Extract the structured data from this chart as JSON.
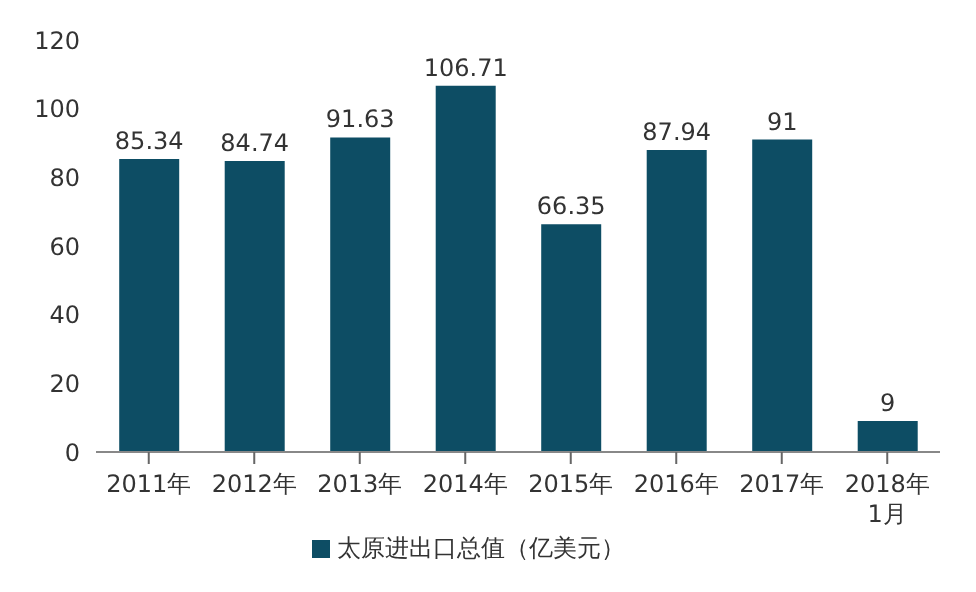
{
  "chart_data": {
    "type": "bar",
    "categories": [
      "2011年",
      "2012年",
      "2013年",
      "2014年",
      "2015年",
      "2016年",
      "2017年",
      "2018年\n1月"
    ],
    "series": [
      {
        "name": "太原进出口总值（亿美元）",
        "color": "#0d4d64",
        "values": [
          85.34,
          84.74,
          91.63,
          106.71,
          66.35,
          87.94,
          91,
          9
        ]
      }
    ],
    "ylim": [
      0,
      120
    ],
    "yticks": [
      0,
      20,
      40,
      60,
      80,
      100,
      120
    ],
    "grid": false,
    "legend": "bottom",
    "data_labels": true
  }
}
